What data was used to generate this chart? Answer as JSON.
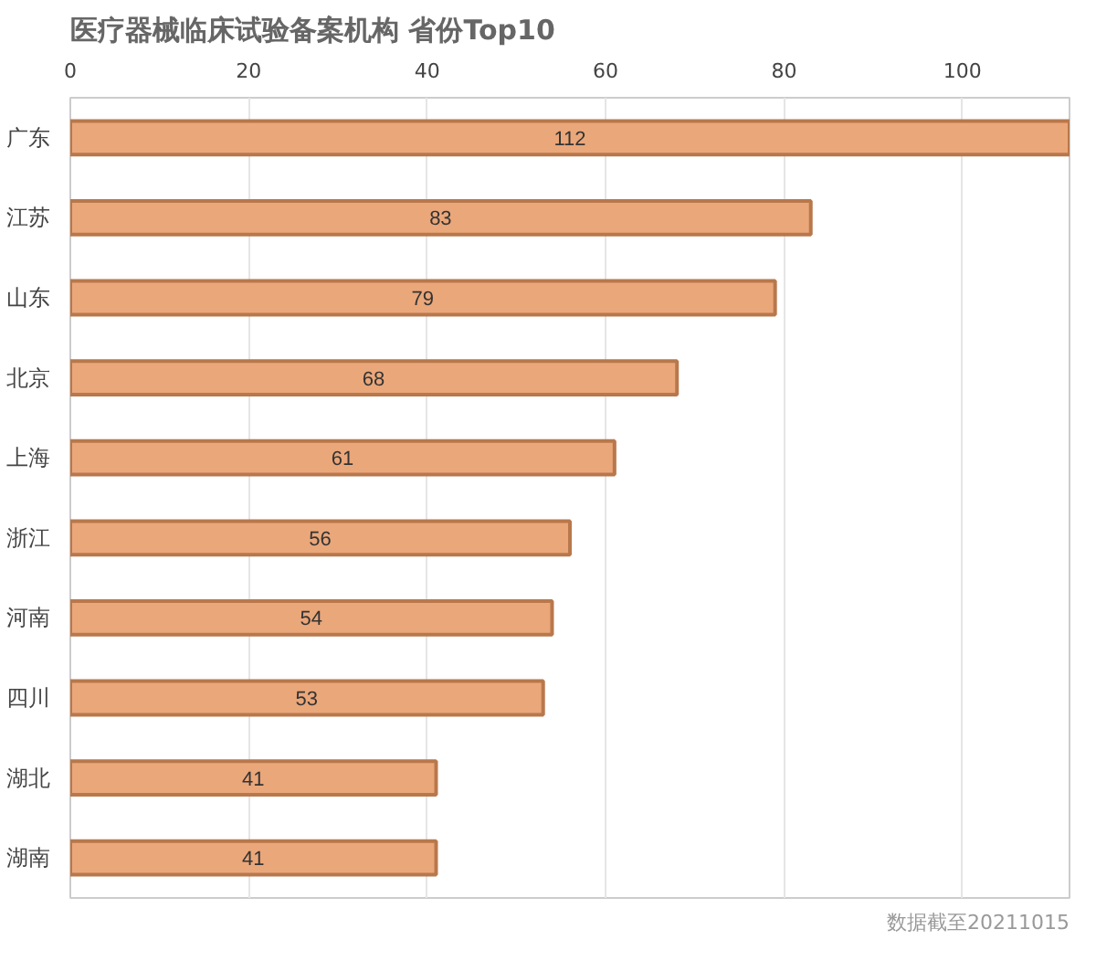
{
  "chart_data": {
    "type": "bar",
    "orientation": "horizontal",
    "title": "医疗器械临床试验备案机构  省份Top10",
    "categories": [
      "广东",
      "江苏",
      "山东",
      "北京",
      "上海",
      "浙江",
      "河南",
      "四川",
      "湖北",
      "湖南"
    ],
    "values": [
      112,
      83,
      79,
      68,
      61,
      56,
      54,
      53,
      41,
      41
    ],
    "color": "#eaa77a",
    "xlim": [
      0,
      112
    ],
    "xticks": [
      0,
      20,
      40,
      60,
      80,
      100
    ],
    "grid": "x",
    "data_labels": true,
    "annotations": [
      "数据截至20211015"
    ]
  }
}
